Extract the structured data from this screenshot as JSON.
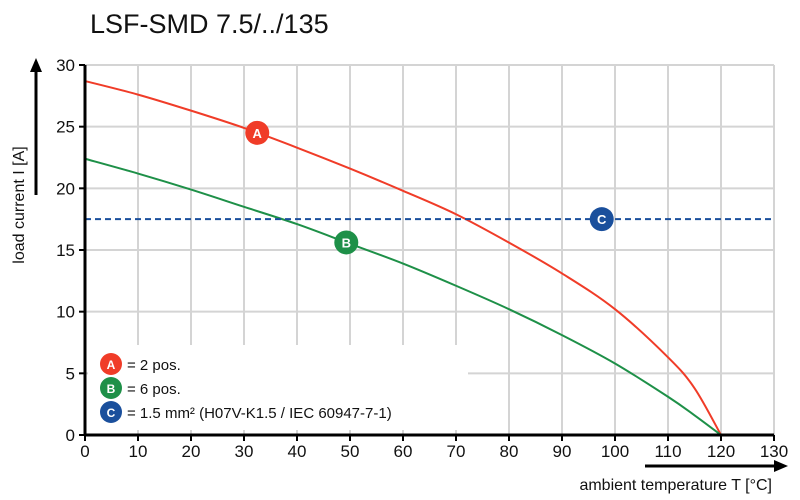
{
  "chart_data": {
    "type": "line",
    "title": "LSF-SMD 7.5/../135",
    "xlabel": "ambient temperature T [°C]",
    "ylabel": "load current I [A]",
    "xlim": [
      0,
      130
    ],
    "ylim": [
      0,
      30
    ],
    "xticks": [
      "0",
      "10",
      "20",
      "30",
      "40",
      "50",
      "60",
      "70",
      "80",
      "90",
      "100",
      "110",
      "120",
      "130"
    ],
    "yticks": [
      "0",
      "5",
      "10",
      "15",
      "20",
      "25",
      "30"
    ],
    "grid": true,
    "legend_position": "bottom-left",
    "series": [
      {
        "name": "A",
        "color": "#f03c28",
        "x": [
          0,
          10,
          20,
          30,
          40,
          50,
          60,
          70,
          80,
          90,
          100,
          110,
          115,
          120
        ],
        "y": [
          28.7,
          27.6,
          26.3,
          24.9,
          23.3,
          21.6,
          19.8,
          17.9,
          15.6,
          13.1,
          10.2,
          6.3,
          3.8,
          0
        ],
        "marker_x": 32.5
      },
      {
        "name": "B",
        "color": "#1e9048",
        "x": [
          0,
          10,
          20,
          30,
          40,
          50,
          60,
          70,
          80,
          90,
          100,
          110,
          115,
          120
        ],
        "y": [
          22.4,
          21.2,
          19.9,
          18.5,
          17.1,
          15.5,
          13.9,
          12.1,
          10.2,
          8.1,
          5.8,
          3.1,
          1.6,
          0
        ],
        "marker_x": 49.3
      },
      {
        "name": "C",
        "color": "#1a4f9c",
        "style": "dashed",
        "x": [
          0,
          130
        ],
        "y": [
          17.5,
          17.5
        ],
        "marker_x": 97.5
      }
    ],
    "legend": [
      {
        "badge": "A",
        "text": "= 2 pos.",
        "color": "#f03c28"
      },
      {
        "badge": "B",
        "text": "= 6 pos.",
        "color": "#1e9048"
      },
      {
        "badge": "C",
        "text": "= 1.5 mm² (H07V-K1.5 / IEC 60947-7-1)",
        "color": "#1a4f9c"
      }
    ]
  }
}
